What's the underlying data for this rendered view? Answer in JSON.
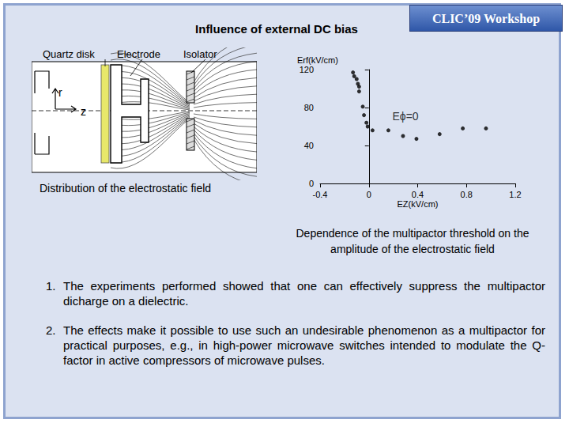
{
  "chart_data": {
    "type": "scatter",
    "xlabel": "EZ(kV/cm)",
    "ylabel": "Erf(kV/cm)",
    "x": [
      -0.13,
      -0.12,
      -0.1,
      -0.09,
      -0.08,
      -0.08,
      -0.05,
      -0.04,
      -0.02,
      -0.01,
      0.03,
      0.16,
      0.28,
      0.39,
      0.58,
      0.77,
      0.96
    ],
    "values": [
      117,
      113,
      110,
      105,
      102,
      97,
      81,
      72,
      64,
      60,
      56,
      56,
      50,
      47,
      52,
      58,
      58
    ],
    "color": "#000000",
    "marker": "circle",
    "xlim": [
      -0.4,
      1.2
    ],
    "xticks": [
      -0.4,
      0,
      0.4,
      0.8,
      1.2
    ],
    "ylim": [
      0,
      120
    ],
    "yticks": [
      0,
      40,
      80,
      120
    ],
    "grid": false,
    "annotations": [
      {
        "text": "Eϕ=0",
        "x": 0.16,
        "y": 71
      }
    ]
  },
  "slide": {
    "title": "Influence of external DC bias",
    "badge": "CLIC’09 Workshop",
    "diagram": {
      "labels": {
        "quartz": "Quartz disk",
        "electrode": "Electrode",
        "isolator": "Isolator",
        "r": "r",
        "z": "z"
      },
      "caption": "Distribution of the electrostatic field"
    },
    "chart_caption": "Dependence of the multipactor threshold on the amplitude of the electrostatic field",
    "list": [
      {
        "number": "1.",
        "text": "The experiments performed showed that one can effectively suppress the multipactor dicharge on a dielectric."
      },
      {
        "number": "2.",
        "text": "The effects make it possible to use such an undesirable phenomenon as a multipactor for practical purposes, e.g., in high-power microwave switches intended to modulate the Q-factor in active compressors of microwave pulses."
      }
    ]
  }
}
